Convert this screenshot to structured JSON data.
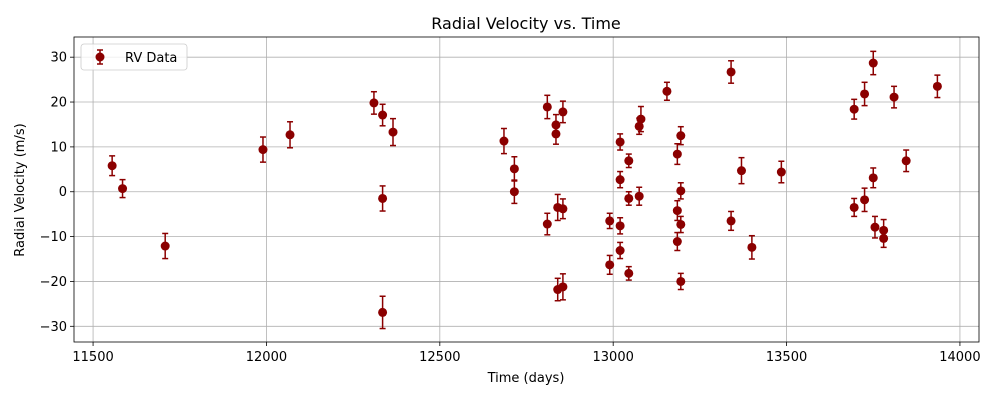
{
  "chart_data": {
    "type": "scatter",
    "title": "Radial Velocity vs. Time",
    "xlabel": "Time (days)",
    "ylabel": "Radial Velocity (m/s)",
    "xlim": [
      11445,
      14055
    ],
    "ylim": [
      -33.5,
      34.5
    ],
    "xticks": [
      11500,
      12000,
      12500,
      13000,
      13500,
      14000
    ],
    "yticks": [
      -30,
      -20,
      -10,
      0,
      10,
      20,
      30
    ],
    "grid": true,
    "legend_position": "top-left",
    "marker_color": "#8b0000",
    "series": [
      {
        "name": "RV Data",
        "points": [
          {
            "x": 11555,
            "y": 5.8,
            "err": 2.2
          },
          {
            "x": 11585,
            "y": 0.7,
            "err": 2.0
          },
          {
            "x": 11708,
            "y": -12.1,
            "err": 2.8
          },
          {
            "x": 11990,
            "y": 9.4,
            "err": 2.8
          },
          {
            "x": 12068,
            "y": 12.7,
            "err": 2.9
          },
          {
            "x": 12310,
            "y": 19.8,
            "err": 2.5
          },
          {
            "x": 12335,
            "y": 17.1,
            "err": 2.4
          },
          {
            "x": 12335,
            "y": -1.5,
            "err": 2.8
          },
          {
            "x": 12335,
            "y": -26.9,
            "err": 3.6
          },
          {
            "x": 12365,
            "y": 13.3,
            "err": 3.0
          },
          {
            "x": 12685,
            "y": 11.3,
            "err": 2.8
          },
          {
            "x": 12715,
            "y": 5.1,
            "err": 2.7
          },
          {
            "x": 12715,
            "y": 0.0,
            "err": 2.6
          },
          {
            "x": 12810,
            "y": 18.9,
            "err": 2.6
          },
          {
            "x": 12810,
            "y": -7.2,
            "err": 2.4
          },
          {
            "x": 12835,
            "y": 14.9,
            "err": 2.3
          },
          {
            "x": 12835,
            "y": 12.9,
            "err": 2.3
          },
          {
            "x": 12840,
            "y": -3.5,
            "err": 2.9
          },
          {
            "x": 12840,
            "y": -21.8,
            "err": 2.5
          },
          {
            "x": 12855,
            "y": 17.8,
            "err": 2.4
          },
          {
            "x": 12855,
            "y": -3.8,
            "err": 2.2
          },
          {
            "x": 12855,
            "y": -21.2,
            "err": 2.9
          },
          {
            "x": 12990,
            "y": -6.5,
            "err": 1.7
          },
          {
            "x": 12990,
            "y": -16.3,
            "err": 2.1
          },
          {
            "x": 13020,
            "y": 11.1,
            "err": 1.8
          },
          {
            "x": 13020,
            "y": 2.7,
            "err": 1.8
          },
          {
            "x": 13020,
            "y": -7.6,
            "err": 1.8
          },
          {
            "x": 13020,
            "y": -13.1,
            "err": 1.8
          },
          {
            "x": 13045,
            "y": 6.9,
            "err": 1.5
          },
          {
            "x": 13045,
            "y": -1.5,
            "err": 1.5
          },
          {
            "x": 13045,
            "y": -18.2,
            "err": 1.5
          },
          {
            "x": 13075,
            "y": 14.6,
            "err": 1.8
          },
          {
            "x": 13080,
            "y": 16.2,
            "err": 2.8
          },
          {
            "x": 13075,
            "y": -1.0,
            "err": 2.0
          },
          {
            "x": 13155,
            "y": 22.4,
            "err": 2.0
          },
          {
            "x": 13185,
            "y": 8.4,
            "err": 2.3
          },
          {
            "x": 13185,
            "y": -4.2,
            "err": 2.2
          },
          {
            "x": 13185,
            "y": -11.1,
            "err": 2.0
          },
          {
            "x": 13195,
            "y": 12.5,
            "err": 2.0
          },
          {
            "x": 13195,
            "y": 0.2,
            "err": 1.8
          },
          {
            "x": 13195,
            "y": -7.3,
            "err": 1.8
          },
          {
            "x": 13195,
            "y": -20.0,
            "err": 1.8
          },
          {
            "x": 13340,
            "y": 26.7,
            "err": 2.5
          },
          {
            "x": 13340,
            "y": -6.5,
            "err": 2.1
          },
          {
            "x": 13370,
            "y": 4.7,
            "err": 2.9
          },
          {
            "x": 13400,
            "y": -12.4,
            "err": 2.6
          },
          {
            "x": 13485,
            "y": 4.4,
            "err": 2.4
          },
          {
            "x": 13695,
            "y": 18.4,
            "err": 2.2
          },
          {
            "x": 13695,
            "y": -3.5,
            "err": 2.0
          },
          {
            "x": 13725,
            "y": 21.8,
            "err": 2.6
          },
          {
            "x": 13725,
            "y": -1.8,
            "err": 2.6
          },
          {
            "x": 13750,
            "y": 28.7,
            "err": 2.6
          },
          {
            "x": 13750,
            "y": 3.1,
            "err": 2.2
          },
          {
            "x": 13755,
            "y": -7.9,
            "err": 2.4
          },
          {
            "x": 13780,
            "y": -8.6,
            "err": 2.4
          },
          {
            "x": 13780,
            "y": -10.4,
            "err": 2.0
          },
          {
            "x": 13810,
            "y": 21.1,
            "err": 2.4
          },
          {
            "x": 13845,
            "y": 6.9,
            "err": 2.4
          },
          {
            "x": 13935,
            "y": 23.5,
            "err": 2.5
          }
        ]
      }
    ]
  }
}
